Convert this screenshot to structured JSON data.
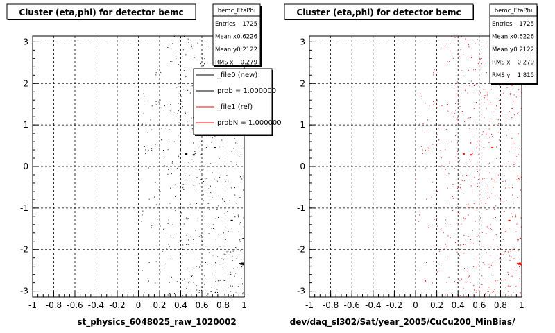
{
  "chart_data": [
    {
      "type": "scatter",
      "title": "Cluster (eta,phi) for detector bemc",
      "xlabel": "st_physics_6048025_raw_1020002",
      "ylabel": "",
      "xlim": [
        -1,
        1
      ],
      "ylim": [
        -3.14,
        3.14
      ],
      "xticks": [
        "-1",
        "-0.8",
        "-0.6",
        "-0.4",
        "-0.2",
        "0",
        "0.2",
        "0.4",
        "0.6",
        "0.8",
        "1"
      ],
      "yticks": [
        "-3",
        "-2",
        "-1",
        "0",
        "1",
        "2",
        "3"
      ],
      "grid": true,
      "marker_color": "#000000",
      "occupied_x_range": [
        0,
        1
      ],
      "hotspot_points": [
        [
          0.97,
          -2.35
        ],
        [
          0.98,
          -2.33
        ],
        [
          0.99,
          -2.36
        ],
        [
          0.96,
          -2.34
        ],
        [
          0.72,
          0.45
        ],
        [
          0.45,
          0.3
        ],
        [
          0.52,
          0.28
        ],
        [
          0.88,
          -1.3
        ]
      ],
      "stats": {
        "name": "bemc_EtaPhi",
        "rows": [
          {
            "label": "Entries",
            "value": "1725"
          },
          {
            "label": "Mean x",
            "value": "0.6226"
          },
          {
            "label": "Mean y",
            "value": "-0.2122"
          },
          {
            "label": "RMS x",
            "value": "0.279"
          }
        ]
      },
      "legend": {
        "placement": "top-right",
        "entries": [
          {
            "label": "_file0 (new)",
            "color": "#000000"
          },
          {
            "label": "prob = 1.000000",
            "color": "#000000"
          },
          {
            "label": "_file1 (ref)",
            "color": "#ff0000"
          },
          {
            "label": "probN = 1.000000",
            "color": "#ff0000"
          }
        ]
      }
    },
    {
      "type": "scatter",
      "title": "Cluster (eta,phi) for detector bemc",
      "xlabel": "dev/daq_sl302/Sat/year_2005/CuCu200_MinBias/",
      "ylabel": "",
      "xlim": [
        -1,
        1
      ],
      "ylim": [
        -3.14,
        3.14
      ],
      "xticks": [
        "-1",
        "-0.8",
        "-0.6",
        "-0.4",
        "-0.2",
        "0",
        "0.2",
        "0.4",
        "0.6",
        "0.8",
        "1"
      ],
      "yticks": [
        "-3",
        "-2",
        "-1",
        "0",
        "1",
        "2",
        "3"
      ],
      "grid": true,
      "marker_color": "#ff0000",
      "occupied_x_range": [
        0,
        1
      ],
      "hotspot_points": [
        [
          0.97,
          -2.35
        ],
        [
          0.98,
          -2.33
        ],
        [
          0.99,
          -2.36
        ],
        [
          0.96,
          -2.34
        ],
        [
          0.72,
          0.45
        ],
        [
          0.45,
          0.3
        ],
        [
          0.52,
          0.28
        ],
        [
          0.88,
          -1.3
        ]
      ],
      "stats": {
        "name": "bemc_EtaPhi",
        "rows": [
          {
            "label": "Entries",
            "value": "1725"
          },
          {
            "label": "Mean x",
            "value": "0.6226"
          },
          {
            "label": "Mean y",
            "value": "-0.2122"
          },
          {
            "label": "RMS x",
            "value": "0.279"
          },
          {
            "label": "RMS y",
            "value": "1.815"
          }
        ]
      }
    }
  ]
}
